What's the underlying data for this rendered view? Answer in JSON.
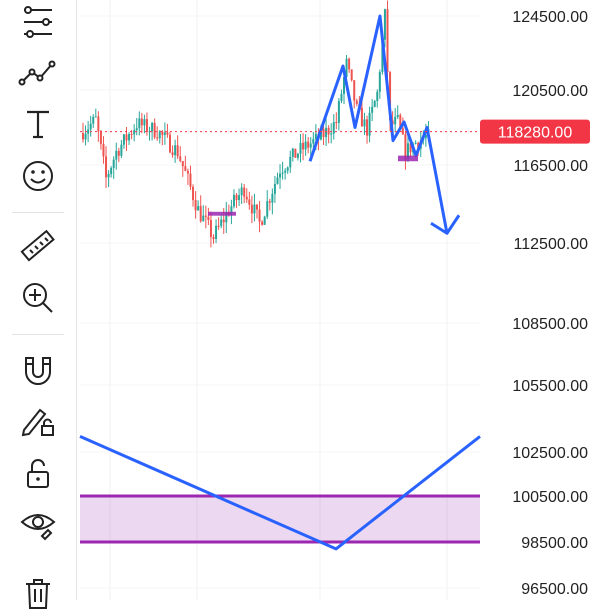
{
  "toolbar": {
    "tools": [
      {
        "name": "trend-line-tools-icon",
        "icon": "lines-with-nodes"
      },
      {
        "name": "pattern-tools-icon",
        "icon": "zigzag"
      },
      {
        "name": "text-tool-icon",
        "icon": "T"
      },
      {
        "name": "emoji-tool-icon",
        "icon": "smiley"
      },
      {
        "name": "ruler-tool-icon",
        "icon": "ruler"
      },
      {
        "name": "zoom-in-tool-icon",
        "icon": "magnifier-plus"
      },
      {
        "name": "magnet-tool-icon",
        "icon": "magnet"
      },
      {
        "name": "draw-lock-tool-icon",
        "icon": "pencil-lock"
      },
      {
        "name": "lock-tool-icon",
        "icon": "unlocked-padlock"
      },
      {
        "name": "visibility-tool-icon",
        "icon": "eye"
      },
      {
        "name": "delete-tool-icon",
        "icon": "trash"
      }
    ]
  },
  "chart_data": {
    "type": "candlestick",
    "title": "",
    "price_axis": {
      "labels": [
        "124500.00",
        "120500.00",
        "116500.00",
        "112500.00",
        "108500.00",
        "105500.00",
        "102500.00",
        "100500.00",
        "98500.00",
        "96500.00"
      ],
      "ylim": [
        96000,
        125500
      ]
    },
    "current_price": {
      "value": 118280,
      "label": "118280.00",
      "color": "#f23645"
    },
    "colors": {
      "up": "#26a69a",
      "down": "#ef5350",
      "drawing": "#2962ff",
      "zone": "#9c27b0"
    },
    "grid": true,
    "candles_summary": {
      "start_close": 118200,
      "low_point": 113200,
      "high_point": 124500,
      "end_close": 118000
    },
    "drawings": {
      "pattern_polyline_prices": [
        116700,
        121800,
        118500,
        124500,
        117800,
        118800,
        117000,
        118500,
        113000
      ],
      "support_box_prices": [
        117000,
        116700
      ],
      "support_box_2_prices": [
        114100,
        113900
      ],
      "zone_prices": [
        100500,
        98500
      ],
      "v_line_prices": [
        103200,
        98200,
        103200
      ]
    }
  }
}
